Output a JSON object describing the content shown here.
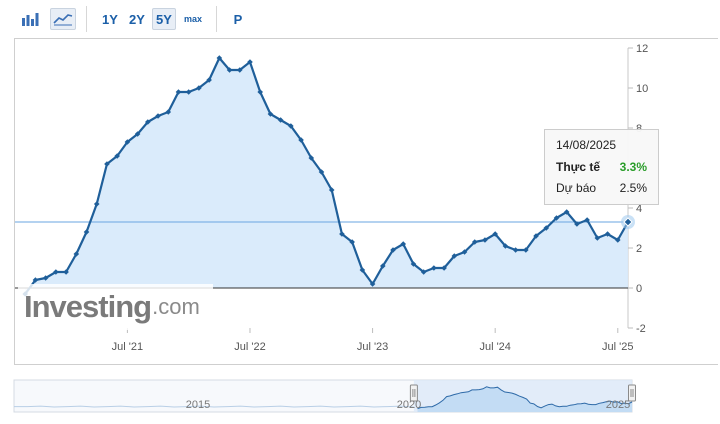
{
  "toolbar": {
    "bar_icon": "bar-chart-icon",
    "line_icon": "line-chart-icon",
    "ranges": [
      "1Y",
      "2Y",
      "5Y",
      "max"
    ],
    "active_range": "5Y",
    "p_label": "P"
  },
  "watermark": {
    "brand": "Investing",
    "domain": ".com"
  },
  "tooltip": {
    "date": "14/08/2025",
    "actual_label": "Thực tế",
    "actual_value": "3.3%",
    "forecast_label": "Dự báo",
    "forecast_value": "2.5%"
  },
  "navigator": {
    "labels": [
      "2015",
      "2020",
      "2025"
    ]
  },
  "colors": {
    "line": "#1f5f9a",
    "fill": "#d6e9fb",
    "actual": "#2a9d2a",
    "accent": "#1b5fa8"
  },
  "chart_data": {
    "type": "area",
    "title": "",
    "xlabel": "",
    "ylabel": "",
    "ylim": [
      -2,
      12
    ],
    "yticks": [
      12,
      10,
      8,
      6,
      4,
      2,
      0,
      -2
    ],
    "xtick_labels": [
      "Jul '21",
      "Jul '22",
      "Jul '23",
      "Jul '24",
      "Jul '25"
    ],
    "reference_line": 3.3,
    "grid": false,
    "x": [
      "2020-09",
      "2020-10",
      "2020-11",
      "2020-12",
      "2021-01",
      "2021-02",
      "2021-03",
      "2021-04",
      "2021-05",
      "2021-06",
      "2021-07",
      "2021-08",
      "2021-09",
      "2021-10",
      "2021-11",
      "2021-12",
      "2022-01",
      "2022-02",
      "2022-03",
      "2022-04",
      "2022-05",
      "2022-06",
      "2022-07",
      "2022-08",
      "2022-09",
      "2022-10",
      "2022-11",
      "2022-12",
      "2023-01",
      "2023-02",
      "2023-03",
      "2023-04",
      "2023-05",
      "2023-06",
      "2023-07",
      "2023-08",
      "2023-09",
      "2023-10",
      "2023-11",
      "2023-12",
      "2024-01",
      "2024-02",
      "2024-03",
      "2024-04",
      "2024-05",
      "2024-06",
      "2024-07",
      "2024-08",
      "2024-09",
      "2024-10",
      "2024-11",
      "2024-12",
      "2025-01",
      "2025-02",
      "2025-03",
      "2025-04",
      "2025-05",
      "2025-06",
      "2025-07"
    ],
    "values": [
      -0.3,
      0.4,
      0.5,
      0.8,
      0.8,
      1.7,
      2.8,
      4.2,
      6.2,
      6.6,
      7.3,
      7.7,
      8.3,
      8.6,
      8.8,
      9.8,
      9.8,
      10.0,
      10.4,
      11.5,
      10.9,
      10.9,
      11.3,
      9.8,
      8.7,
      8.4,
      8.1,
      7.4,
      6.5,
      5.8,
      4.9,
      2.7,
      2.3,
      0.9,
      0.2,
      1.1,
      1.9,
      2.2,
      1.2,
      0.8,
      1.0,
      1.0,
      1.6,
      1.8,
      2.3,
      2.4,
      2.7,
      2.1,
      1.9,
      1.9,
      2.6,
      3.0,
      3.5,
      3.8,
      3.2,
      3.4,
      2.5,
      2.7,
      2.4
    ],
    "highlight": {
      "x": "2025-08",
      "value": 3.3
    }
  }
}
